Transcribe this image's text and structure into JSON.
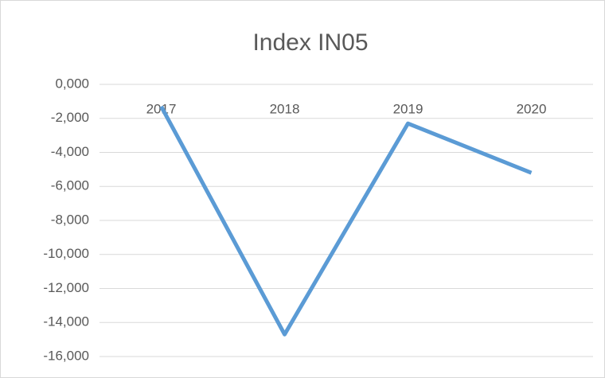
{
  "chart_data": {
    "type": "line",
    "title": "Index IN05",
    "categories": [
      "2017",
      "2018",
      "2019",
      "2020"
    ],
    "values": [
      -1.3,
      -14.7,
      -2.3,
      -5.2
    ],
    "color": "#5b9bd5",
    "ylim": [
      -16,
      0
    ],
    "yticks": [
      {
        "value": 0,
        "label": "0,000"
      },
      {
        "value": -2,
        "label": "-2,000"
      },
      {
        "value": -4,
        "label": "-4,000"
      },
      {
        "value": -6,
        "label": "-6,000"
      },
      {
        "value": -8,
        "label": "-8,000"
      },
      {
        "value": -10,
        "label": "-10,000"
      },
      {
        "value": -12,
        "label": "-12,000"
      },
      {
        "value": -14,
        "label": "-14,000"
      },
      {
        "value": -16,
        "label": "-16,000"
      }
    ],
    "grid": true
  }
}
